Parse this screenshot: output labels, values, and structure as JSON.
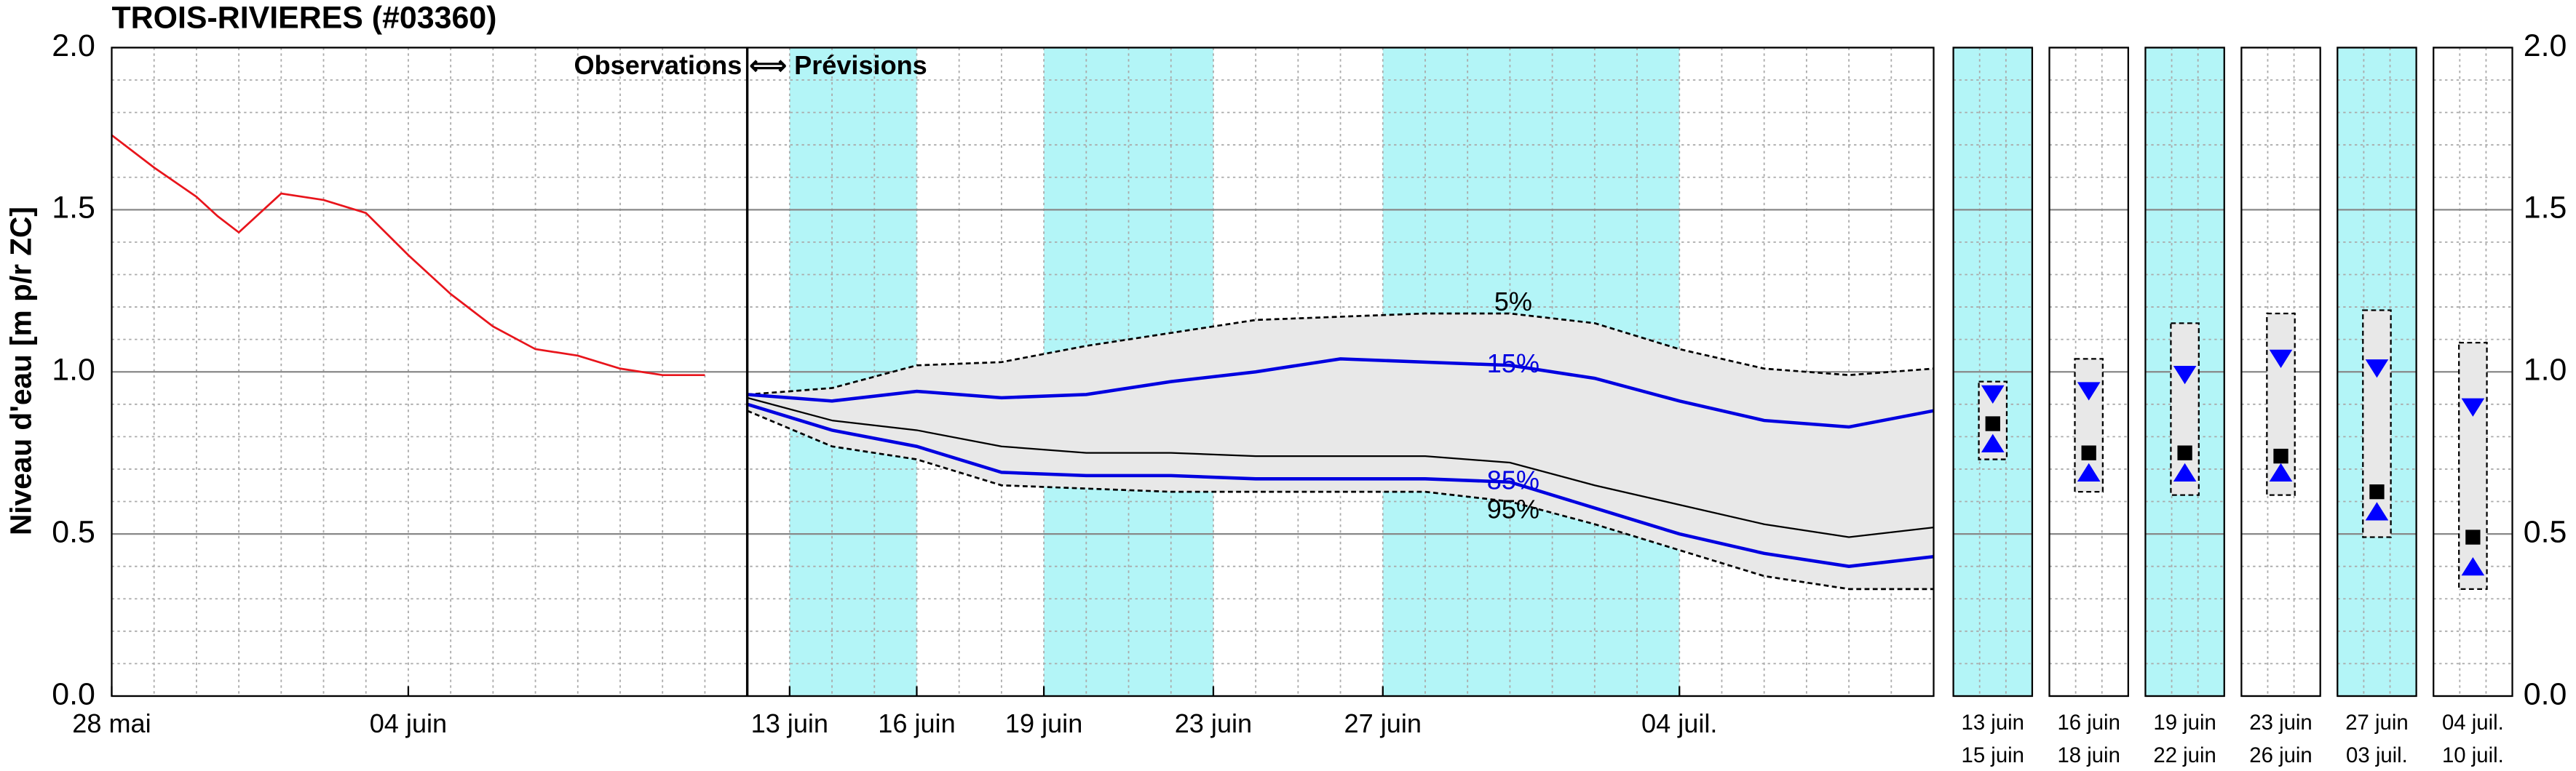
{
  "chart_data": [
    {
      "type": "line",
      "title": "TROIS-RIVIERES (#03360)",
      "ylabel": "Niveau d'eau [m p/r ZC]",
      "annotation": "Observations ⟺ Prévisions",
      "xlim": [
        0,
        43
      ],
      "xticks": [
        {
          "value": 0,
          "label": "28 mai"
        },
        {
          "value": 7,
          "label": "04 juin"
        },
        {
          "value": 16,
          "label": "13 juin"
        },
        {
          "value": 19,
          "label": "16 juin"
        },
        {
          "value": 22,
          "label": "19 juin"
        },
        {
          "value": 26,
          "label": "23 juin"
        },
        {
          "value": 30,
          "label": "27 juin"
        },
        {
          "value": 37,
          "label": "04 juil."
        }
      ],
      "ylim": [
        0,
        2
      ],
      "yticks": [
        {
          "value": 0,
          "label": "0.0"
        },
        {
          "value": 0.5,
          "label": "0.5"
        },
        {
          "value": 1,
          "label": "1.0"
        },
        {
          "value": 1.5,
          "label": "1.5"
        },
        {
          "value": 2,
          "label": "2.0"
        }
      ],
      "grid": true,
      "bands": [
        [
          16,
          19
        ],
        [
          22,
          26
        ],
        [
          30,
          37
        ]
      ],
      "band_color": "#b3f5f7",
      "fill_color": "#e8e8e8",
      "series": [
        {
          "color": "#e8141b",
          "x": [
            0,
            1,
            2,
            2.5,
            3,
            3.5,
            4,
            5,
            6,
            7,
            8,
            9,
            10,
            11,
            12,
            13,
            14
          ],
          "values": [
            1.73,
            1.63,
            1.54,
            1.48,
            1.43,
            1.49,
            1.55,
            1.53,
            1.49,
            1.36,
            1.24,
            1.14,
            1.07,
            1.05,
            1.01,
            0.99,
            0.99
          ]
        },
        {
          "name": "5%",
          "color": "#000000",
          "dash": true,
          "x": [
            15,
            17,
            19,
            21,
            23,
            25,
            27,
            29,
            31,
            33,
            35,
            37,
            39,
            41,
            43
          ],
          "values": [
            0.93,
            0.95,
            1.02,
            1.03,
            1.08,
            1.12,
            1.16,
            1.17,
            1.18,
            1.18,
            1.15,
            1.07,
            1.01,
            0.99,
            1.01
          ]
        },
        {
          "name": "15%",
          "color": "#0000e0",
          "x": [
            15,
            17,
            19,
            21,
            23,
            25,
            27,
            29,
            31,
            33,
            35,
            37,
            39,
            41,
            43
          ],
          "values": [
            0.93,
            0.91,
            0.94,
            0.92,
            0.93,
            0.97,
            1.0,
            1.04,
            1.03,
            1.02,
            0.98,
            0.91,
            0.85,
            0.83,
            0.88
          ]
        },
        {
          "color": "#000000",
          "x": [
            15,
            17,
            19,
            21,
            23,
            25,
            27,
            29,
            31,
            33,
            35,
            37,
            39,
            41,
            43
          ],
          "values": [
            0.92,
            0.85,
            0.82,
            0.77,
            0.75,
            0.75,
            0.74,
            0.74,
            0.74,
            0.72,
            0.65,
            0.59,
            0.53,
            0.49,
            0.52
          ]
        },
        {
          "name": "85%",
          "color": "#0000e0",
          "x": [
            15,
            17,
            19,
            21,
            23,
            25,
            27,
            29,
            31,
            33,
            35,
            37,
            39,
            41,
            43
          ],
          "values": [
            0.9,
            0.82,
            0.77,
            0.69,
            0.68,
            0.68,
            0.67,
            0.67,
            0.67,
            0.66,
            0.58,
            0.5,
            0.44,
            0.4,
            0.43
          ]
        },
        {
          "name": "95%",
          "color": "#000000",
          "dash": true,
          "x": [
            15,
            17,
            19,
            21,
            23,
            25,
            27,
            29,
            31,
            33,
            35,
            37,
            39,
            41,
            43
          ],
          "values": [
            0.88,
            0.77,
            0.73,
            0.65,
            0.64,
            0.63,
            0.63,
            0.63,
            0.63,
            0.6,
            0.53,
            0.45,
            0.37,
            0.33,
            0.33
          ]
        }
      ]
    },
    {
      "type": "range",
      "categories": [
        {
          "start": "13 juin",
          "end": "15 juin"
        },
        {
          "start": "16 juin",
          "end": "18 juin"
        },
        {
          "start": "19 juin",
          "end": "22 juin"
        },
        {
          "start": "23 juin",
          "end": "26 juin"
        },
        {
          "start": "27 juin",
          "end": "03 juil."
        },
        {
          "start": "04 juil.",
          "end": "10 juil."
        }
      ],
      "shaded": [
        true,
        false,
        true,
        false,
        true,
        false
      ],
      "band_color": "#b3f5f7",
      "ylim": [
        0,
        2
      ],
      "yticks": [
        {
          "value": 0,
          "label": "0.0"
        },
        {
          "value": 0.5,
          "label": "0.5"
        },
        {
          "value": 1,
          "label": "1.0"
        },
        {
          "value": 1.5,
          "label": "1.5"
        },
        {
          "value": 2,
          "label": "2.0"
        }
      ],
      "box": {
        "color": "#e8e8e8",
        "top": [
          0.97,
          1.04,
          1.15,
          1.18,
          1.19,
          1.09
        ],
        "bottom": [
          0.73,
          0.63,
          0.62,
          0.62,
          0.49,
          0.33
        ]
      },
      "markers": [
        {
          "shape": "triangle-down",
          "color": "#0000ff",
          "values": [
            0.93,
            0.94,
            0.99,
            1.04,
            1.01,
            0.89
          ]
        },
        {
          "shape": "square",
          "color": "#000000",
          "values": [
            0.84,
            0.75,
            0.75,
            0.74,
            0.63,
            0.49
          ]
        },
        {
          "shape": "triangle-up",
          "color": "#0000ff",
          "values": [
            0.78,
            0.69,
            0.69,
            0.69,
            0.57,
            0.4
          ]
        }
      ]
    }
  ]
}
